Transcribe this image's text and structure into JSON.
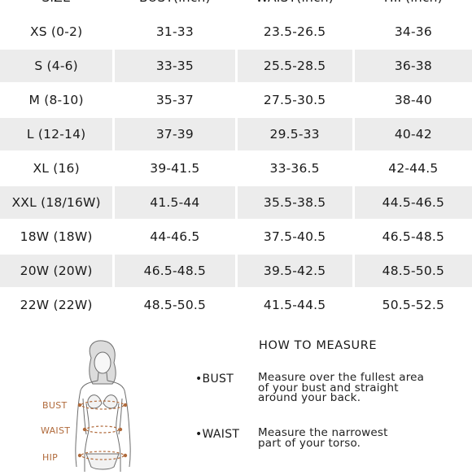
{
  "size_chart": {
    "headers": [
      "SIZE",
      "BUST(inch)",
      "WAIST(inch)",
      "HIP(inch)"
    ],
    "rows": [
      [
        "XS (0-2)",
        "31-33",
        "23.5-26.5",
        "34-36"
      ],
      [
        "S (4-6)",
        "33-35",
        "25.5-28.5",
        "36-38"
      ],
      [
        "M (8-10)",
        "35-37",
        "27.5-30.5",
        "38-40"
      ],
      [
        "L (12-14)",
        "37-39",
        "29.5-33",
        "40-42"
      ],
      [
        "XL (16)",
        "39-41.5",
        "33-36.5",
        "42-44.5"
      ],
      [
        "XXL (18/16W)",
        "41.5-44",
        "35.5-38.5",
        "44.5-46.5"
      ],
      [
        "18W (18W)",
        "44-46.5",
        "37.5-40.5",
        "46.5-48.5"
      ],
      [
        "20W (20W)",
        "46.5-48.5",
        "39.5-42.5",
        "48.5-50.5"
      ],
      [
        "22W (22W)",
        "48.5-50.5",
        "41.5-44.5",
        "50.5-52.5"
      ]
    ]
  },
  "figure": {
    "labels": {
      "bust": "BUST",
      "waist": "WAIST",
      "hip": "HIP"
    },
    "accent_color": "#b06a3b"
  },
  "how_to_measure": {
    "title": "HOW TO MEASURE",
    "items": [
      {
        "label": "•BUST",
        "desc_lines": [
          "Measure over the fullest area",
          "of your bust and straight",
          "around your back."
        ]
      },
      {
        "label": "•WAIST",
        "desc_lines": [
          "Measure the narrowest",
          "part of your torso."
        ]
      }
    ]
  }
}
